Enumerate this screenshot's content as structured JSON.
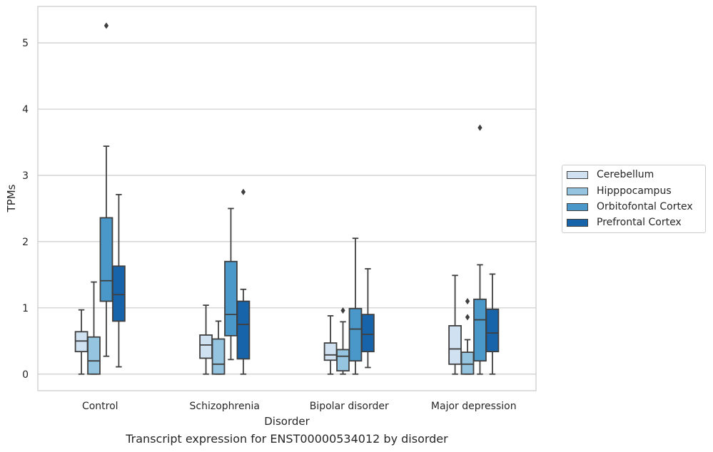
{
  "caption": "Transcript expression for ENST00000534012 by disorder",
  "chart_data": {
    "type": "box",
    "title": "",
    "xlabel": "Disorder",
    "ylabel": "TPMs",
    "ylim": [
      -0.25,
      5.55
    ],
    "yticks": [
      0,
      1,
      2,
      3,
      4,
      5
    ],
    "grid": "horizontal",
    "legend_position": "right",
    "categories": [
      "Control",
      "Schizophrenia",
      "Bipolar disorder",
      "Major depression"
    ],
    "series": [
      {
        "name": "Cerebellum",
        "color": "#d0e1f2",
        "boxes": [
          {
            "whislo": 0.0,
            "q1": 0.34,
            "med": 0.5,
            "q3": 0.64,
            "whishi": 0.97,
            "fliers": []
          },
          {
            "whislo": 0.0,
            "q1": 0.24,
            "med": 0.44,
            "q3": 0.59,
            "whishi": 1.04,
            "fliers": []
          },
          {
            "whislo": 0.0,
            "q1": 0.21,
            "med": 0.29,
            "q3": 0.47,
            "whishi": 0.88,
            "fliers": []
          },
          {
            "whislo": 0.0,
            "q1": 0.15,
            "med": 0.38,
            "q3": 0.73,
            "whishi": 1.49,
            "fliers": []
          }
        ]
      },
      {
        "name": "Hipppocampus",
        "color": "#94c4df",
        "boxes": [
          {
            "whislo": 0.0,
            "q1": 0.0,
            "med": 0.2,
            "q3": 0.56,
            "whishi": 1.39,
            "fliers": []
          },
          {
            "whislo": 0.0,
            "q1": 0.0,
            "med": 0.15,
            "q3": 0.53,
            "whishi": 0.8,
            "fliers": []
          },
          {
            "whislo": 0.0,
            "q1": 0.05,
            "med": 0.27,
            "q3": 0.37,
            "whishi": 0.79,
            "fliers": [
              0.96
            ]
          },
          {
            "whislo": 0.0,
            "q1": 0.0,
            "med": 0.15,
            "q3": 0.33,
            "whishi": 0.52,
            "fliers": [
              0.86,
              1.1
            ]
          }
        ]
      },
      {
        "name": "Orbitofontal Cortex",
        "color": "#4a98c9",
        "boxes": [
          {
            "whislo": 0.27,
            "q1": 1.1,
            "med": 1.41,
            "q3": 2.36,
            "whishi": 3.44,
            "fliers": [
              5.26
            ]
          },
          {
            "whislo": 0.22,
            "q1": 0.58,
            "med": 0.9,
            "q3": 1.7,
            "whishi": 2.5,
            "fliers": []
          },
          {
            "whislo": 0.0,
            "q1": 0.2,
            "med": 0.68,
            "q3": 0.99,
            "whishi": 2.05,
            "fliers": []
          },
          {
            "whislo": 0.0,
            "q1": 0.2,
            "med": 0.82,
            "q3": 1.13,
            "whishi": 1.65,
            "fliers": [
              3.72
            ]
          }
        ]
      },
      {
        "name": "Prefrontal Cortex",
        "color": "#1764ab",
        "boxes": [
          {
            "whislo": 0.11,
            "q1": 0.8,
            "med": 1.2,
            "q3": 1.63,
            "whishi": 2.71,
            "fliers": []
          },
          {
            "whislo": 0.0,
            "q1": 0.23,
            "med": 0.75,
            "q3": 1.1,
            "whishi": 1.28,
            "fliers": [
              2.75
            ]
          },
          {
            "whislo": 0.1,
            "q1": 0.34,
            "med": 0.6,
            "q3": 0.9,
            "whishi": 1.59,
            "fliers": []
          },
          {
            "whislo": 0.0,
            "q1": 0.34,
            "med": 0.62,
            "q3": 0.98,
            "whishi": 1.51,
            "fliers": []
          }
        ]
      }
    ]
  }
}
